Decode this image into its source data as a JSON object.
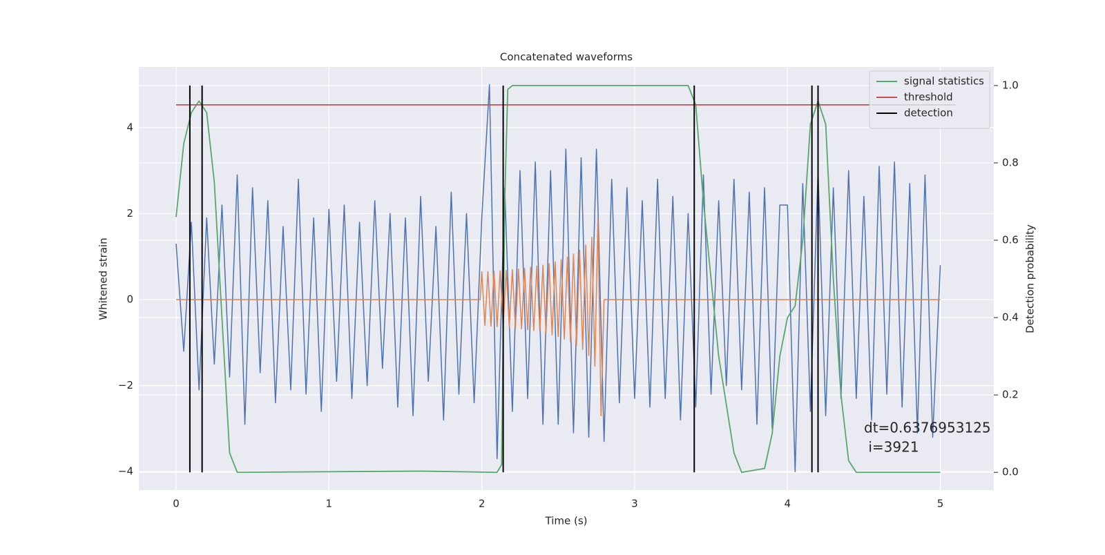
{
  "chart_data": {
    "type": "line",
    "title": "Concatenated waveforms",
    "xlabel": "Time (s)",
    "ylabel": "Whitened strain",
    "y2label": "Detection probability",
    "xlim": [
      -0.244,
      5.35
    ],
    "ylim": [
      -4.43,
      5.41
    ],
    "y2lim": [
      -0.046,
      1.048
    ],
    "xticks": [
      0,
      1,
      2,
      3,
      4,
      5
    ],
    "yticks": [
      {
        "value": -4,
        "label": "−4"
      },
      {
        "value": -2,
        "label": "−2"
      },
      0,
      2,
      4
    ],
    "y2ticks": [
      {
        "value": 0,
        "label": "0.0"
      },
      0.2,
      0.4,
      0.6,
      0.8,
      {
        "value": 1,
        "label": "1.0"
      }
    ],
    "grid": true,
    "legend": "upper right",
    "annotation": [
      "dt=0.6376953125",
      " i=3921"
    ],
    "series": [
      {
        "color": "#4c72b0",
        "x": [
          0,
          0.05,
          0.1,
          0.15,
          0.2,
          0.25,
          0.3,
          0.35,
          0.4,
          0.45,
          0.5,
          0.55,
          0.6,
          0.65,
          0.7,
          0.75,
          0.8,
          0.85,
          0.9,
          0.95,
          1,
          1.05,
          1.1,
          1.15,
          1.2,
          1.25,
          1.3,
          1.35,
          1.4,
          1.45,
          1.5,
          1.55,
          1.6,
          1.65,
          1.7,
          1.75,
          1.8,
          1.85,
          1.9,
          1.95,
          2,
          2.05,
          2.1,
          2.15,
          2.2,
          2.25,
          2.3,
          2.35,
          2.4,
          2.45,
          2.5,
          2.55,
          2.6,
          2.65,
          2.7,
          2.75,
          2.8,
          2.85,
          2.9,
          2.95,
          3,
          3.05,
          3.1,
          3.15,
          3.2,
          3.25,
          3.3,
          3.35,
          3.4,
          3.45,
          3.5,
          3.55,
          3.6,
          3.65,
          3.7,
          3.75,
          3.8,
          3.85,
          3.9,
          3.95,
          4,
          4.05,
          4.1,
          4.15,
          4.2,
          4.25,
          4.3,
          4.35,
          4.4,
          4.45,
          4.5,
          4.55,
          4.6,
          4.65,
          4.7,
          4.75,
          4.8,
          4.85,
          4.9,
          4.95,
          5
        ],
        "values": [
          1.3,
          -1.2,
          1.8,
          -2.1,
          1.9,
          -1.5,
          2.2,
          -1.8,
          2.9,
          -2.9,
          2.6,
          -1.7,
          2.3,
          -2.4,
          1.7,
          -2.1,
          2.8,
          -2.2,
          1.9,
          -2.6,
          2.1,
          -1.9,
          2.2,
          -2.3,
          1.8,
          -2.0,
          2.3,
          -1.6,
          2.0,
          -2.5,
          1.9,
          -2.7,
          2.4,
          -1.9,
          1.7,
          -2.8,
          2.5,
          -2.2,
          2.0,
          -2.4,
          1.9,
          5.0,
          -3.7,
          2.6,
          -2.6,
          3.0,
          -2.3,
          3.2,
          -2.9,
          3.0,
          -2.9,
          3.5,
          -3.1,
          3.3,
          -3.2,
          3.5,
          -3.3,
          2.8,
          -2.4,
          2.6,
          -2.3,
          2.3,
          -2.5,
          2.8,
          -2.3,
          2.4,
          -2.8,
          2.0,
          -2.5,
          2.9,
          -2.2,
          2.3,
          -2.0,
          2.8,
          -2.1,
          2.5,
          -2.9,
          2.6,
          -3.0,
          2.2,
          2.2,
          -4.0,
          2.7,
          -2.6,
          3.0,
          -2.7,
          2.6,
          -2.3,
          3.0,
          -2.3,
          2.4,
          -2.8,
          3.1,
          -2.2,
          3.2,
          -2.5,
          2.7,
          -3.1,
          2.9,
          -3.2,
          0.8
        ]
      },
      {
        "color": "#dd8452",
        "x": [
          0,
          1.99,
          2.0,
          2.02,
          2.04,
          2.06,
          2.08,
          2.1,
          2.12,
          2.14,
          2.16,
          2.18,
          2.2,
          2.22,
          2.24,
          2.26,
          2.28,
          2.3,
          2.32,
          2.34,
          2.36,
          2.38,
          2.4,
          2.42,
          2.44,
          2.46,
          2.48,
          2.5,
          2.52,
          2.54,
          2.56,
          2.58,
          2.6,
          2.62,
          2.64,
          2.66,
          2.68,
          2.7,
          2.72,
          2.74,
          2.76,
          2.78,
          2.8,
          5
        ],
        "values": [
          0,
          0,
          0.65,
          -0.6,
          0.65,
          -0.62,
          0.66,
          -0.63,
          0.67,
          -0.64,
          0.68,
          -0.65,
          0.7,
          -0.66,
          0.71,
          -0.68,
          0.73,
          -0.7,
          0.75,
          -0.72,
          0.78,
          -0.75,
          0.8,
          -0.78,
          0.84,
          -0.82,
          0.88,
          -0.86,
          0.93,
          -0.92,
          0.99,
          -0.98,
          1.06,
          -1.06,
          1.15,
          -1.16,
          1.27,
          -1.3,
          1.45,
          -1.55,
          1.9,
          -2.7,
          0,
          0
        ]
      },
      {
        "name": "signal statistics",
        "color": "#55a868",
        "axis": "y2",
        "x": [
          0,
          0.05,
          0.1,
          0.15,
          0.2,
          0.25,
          0.3,
          0.35,
          0.4,
          1.6,
          2.1,
          2.13,
          2.15,
          2.17,
          2.2,
          3.35,
          3.4,
          3.45,
          3.55,
          3.65,
          3.7,
          3.85,
          3.9,
          3.95,
          4.0,
          4.05,
          4.1,
          4.15,
          4.2,
          4.25,
          4.3,
          4.35,
          4.4,
          4.45,
          5.0
        ],
        "values": [
          0.66,
          0.85,
          0.93,
          0.96,
          0.93,
          0.75,
          0.4,
          0.05,
          0.0,
          0.003,
          0.0,
          0.02,
          0.7,
          0.99,
          1.0,
          1.0,
          0.95,
          0.7,
          0.3,
          0.05,
          0.0,
          0.01,
          0.1,
          0.3,
          0.4,
          0.43,
          0.6,
          0.9,
          0.96,
          0.9,
          0.5,
          0.2,
          0.03,
          0.0,
          0.0
        ]
      },
      {
        "name": "threshold",
        "color": "#c44e52",
        "axis": "y2",
        "x": [
          0,
          5.1
        ],
        "values": [
          0.95,
          0.95
        ]
      },
      {
        "name": "detection",
        "color": "#000000",
        "axis": "y2",
        "x": [
          0.09,
          0.17,
          2.14,
          3.39,
          4.16,
          4.2
        ],
        "span": [
          0,
          1
        ]
      }
    ]
  }
}
